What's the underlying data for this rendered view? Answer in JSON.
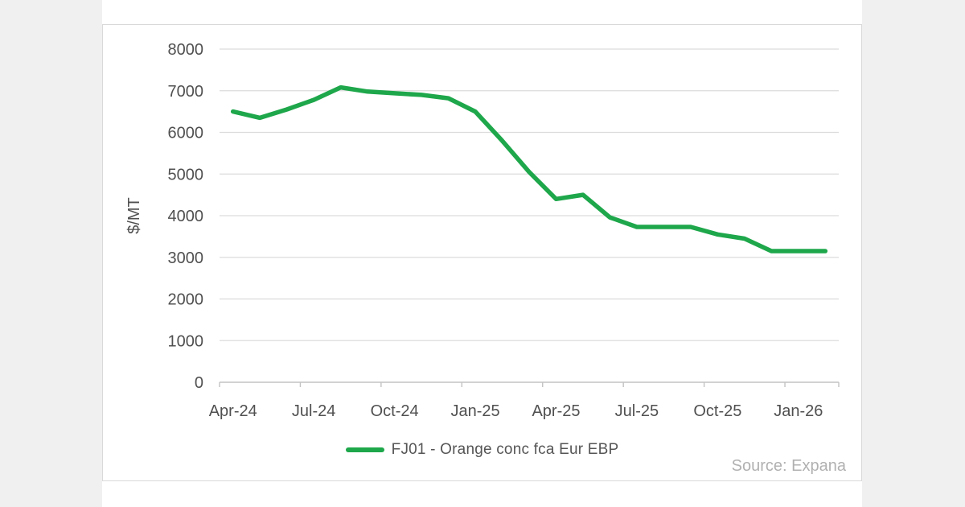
{
  "page": {
    "background_color": "#f0f0f0",
    "card_background": "#ffffff",
    "card_border_color": "#d9d9d9"
  },
  "chart_data": {
    "type": "line",
    "title": "",
    "xlabel": "",
    "ylabel": "$/MT",
    "x": [
      "Apr-24",
      "May-24",
      "Jun-24",
      "Jul-24",
      "Aug-24",
      "Sep-24",
      "Oct-24",
      "Nov-24",
      "Dec-24",
      "Jan-25",
      "Feb-25",
      "Mar-25",
      "Apr-25",
      "May-25",
      "Jun-25",
      "Jul-25",
      "Aug-25",
      "Sep-25",
      "Oct-25",
      "Nov-25",
      "Dec-25",
      "Jan-26",
      "Feb-26"
    ],
    "series": [
      {
        "name": "FJ01 - Orange conc fca Eur EBP",
        "color": "#1ea74b",
        "values": [
          6500,
          6350,
          6550,
          6780,
          7080,
          6980,
          6940,
          6900,
          6820,
          6500,
          5800,
          5050,
          4400,
          4500,
          3960,
          3730,
          3730,
          3730,
          3550,
          3450,
          3150,
          3150,
          3150
        ]
      }
    ],
    "x_tick_labels": [
      "Apr-24",
      "Jul-24",
      "Oct-24",
      "Jan-25",
      "Apr-25",
      "Jul-25",
      "Oct-25",
      "Jan-26"
    ],
    "x_tick_every_months": 3,
    "y_ticks": [
      0,
      1000,
      2000,
      3000,
      4000,
      5000,
      6000,
      7000,
      8000
    ],
    "ylim": [
      0,
      8000
    ],
    "grid": "horizontal",
    "legend": {
      "position": "bottom-center",
      "entries": [
        {
          "label": "FJ01 - Orange conc fca Eur EBP",
          "color": "#1ea74b"
        }
      ]
    },
    "source_note": "Source: Expana",
    "colors": {
      "line": "#1ea74b",
      "gridline": "#dcdcdc",
      "axis_line": "#c3c3c3",
      "tick": "#c3c3c3",
      "axis_text": "#505050",
      "source_text": "#b1b1b1"
    }
  }
}
